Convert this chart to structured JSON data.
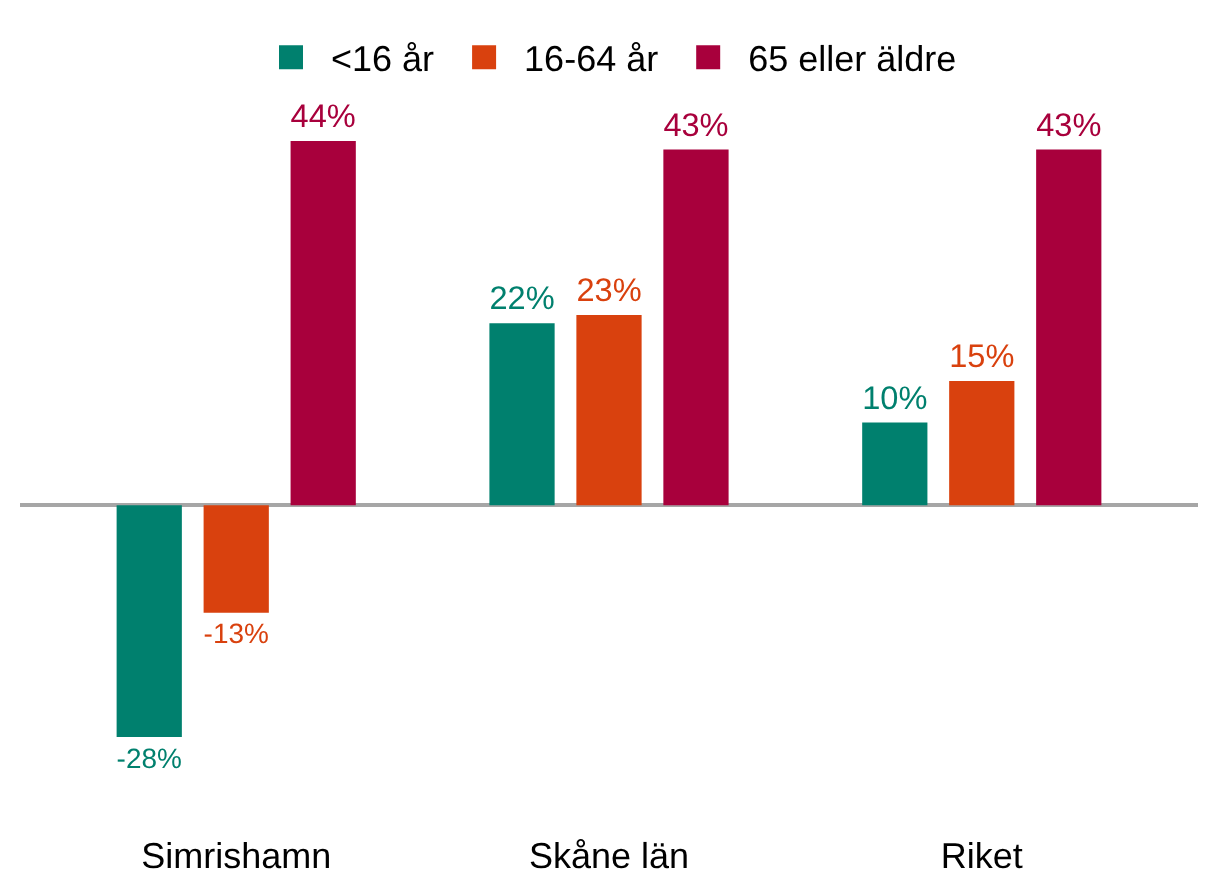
{
  "chart_data": {
    "type": "bar",
    "categories": [
      "Simrishamn",
      "Skåne län",
      "Riket"
    ],
    "series": [
      {
        "name": "<16 år",
        "color": "#00806e",
        "values": [
          -28,
          22,
          10
        ],
        "value_labels": [
          "-28%",
          "22%",
          "10%"
        ]
      },
      {
        "name": "16-64 år",
        "color": "#d9410e",
        "values": [
          -13,
          23,
          15
        ],
        "value_labels": [
          "-13%",
          "23%",
          "15%"
        ]
      },
      {
        "name": "65 eller äldre",
        "color": "#a8003c",
        "values": [
          44,
          43,
          43
        ],
        "value_labels": [
          "44%",
          "43%",
          "43%"
        ]
      }
    ],
    "legend": "top"
  }
}
